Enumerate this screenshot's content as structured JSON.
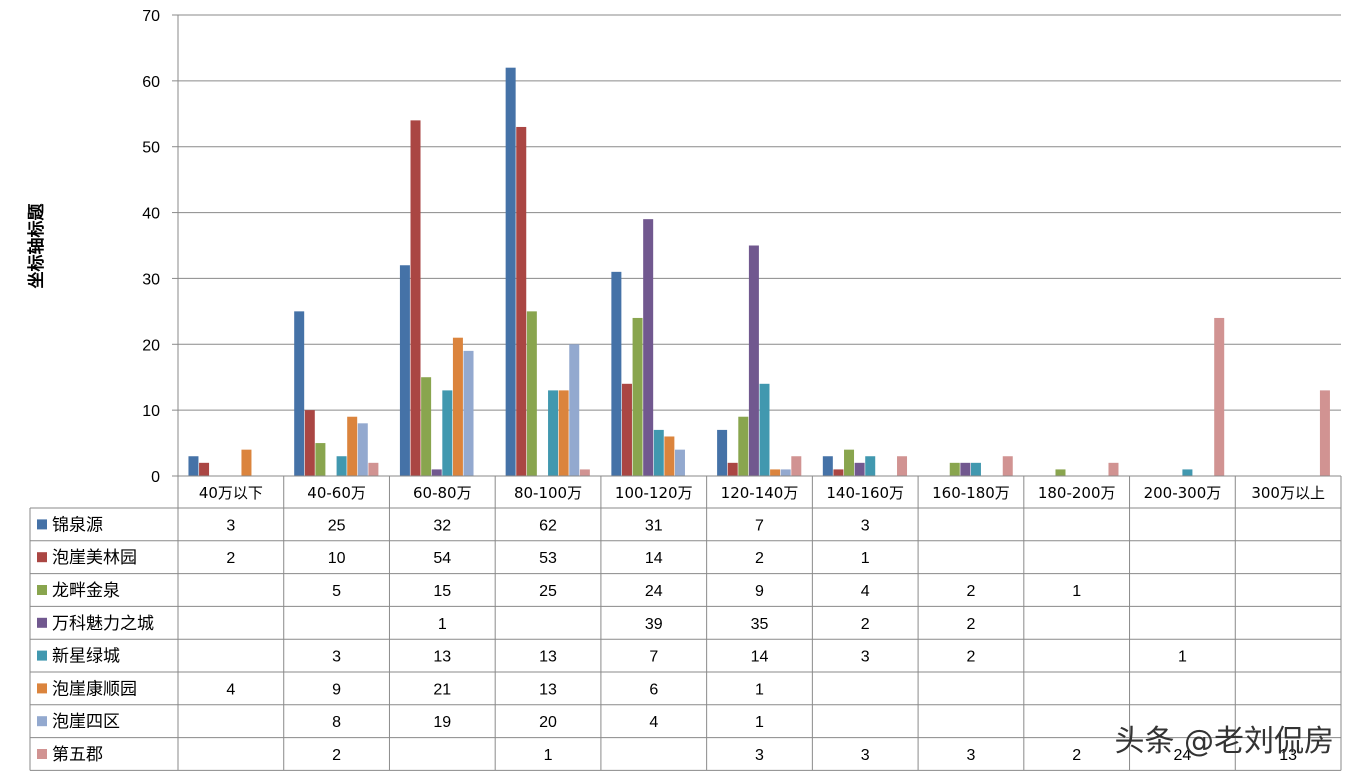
{
  "chart_data": {
    "type": "bar",
    "ylabel": "坐标轴标题",
    "ylim": [
      0,
      70
    ],
    "yticks": [
      0,
      10,
      20,
      30,
      40,
      50,
      60,
      70
    ],
    "grid": true,
    "legend_placement": "data-table",
    "categories": [
      "40万以下",
      "40-60万",
      "60-80万",
      "80-100万",
      "100-120万",
      "120-140万",
      "140-160万",
      "160-180万",
      "180-200万",
      "200-300万",
      "300万以上"
    ],
    "series": [
      {
        "name": "锦泉源",
        "color": "#4572A7",
        "values": [
          3,
          25,
          32,
          62,
          31,
          7,
          3,
          null,
          null,
          null,
          null
        ]
      },
      {
        "name": "泡崖美林园",
        "color": "#AA4643",
        "values": [
          2,
          10,
          54,
          53,
          14,
          2,
          1,
          null,
          null,
          null,
          null
        ]
      },
      {
        "name": "龙畔金泉",
        "color": "#89A54E",
        "values": [
          null,
          5,
          15,
          25,
          24,
          9,
          4,
          2,
          1,
          null,
          null
        ]
      },
      {
        "name": "万科魅力之城",
        "color": "#71588F",
        "values": [
          null,
          null,
          1,
          null,
          39,
          35,
          2,
          2,
          null,
          null,
          null
        ]
      },
      {
        "name": "新星绿城",
        "color": "#4198AF",
        "values": [
          null,
          3,
          13,
          13,
          7,
          14,
          3,
          2,
          null,
          1,
          null
        ]
      },
      {
        "name": "泡崖康顺园",
        "color": "#DB843D",
        "values": [
          4,
          9,
          21,
          13,
          6,
          1,
          null,
          null,
          null,
          null,
          null
        ]
      },
      {
        "name": "泡崖四区",
        "color": "#93A9CF",
        "values": [
          null,
          8,
          19,
          20,
          4,
          1,
          null,
          null,
          null,
          null,
          null
        ]
      },
      {
        "name": "第五郡",
        "color": "#D19392",
        "values": [
          null,
          2,
          null,
          1,
          null,
          3,
          3,
          3,
          2,
          24,
          13
        ]
      }
    ]
  },
  "watermark": "头条 @老刘侃房"
}
